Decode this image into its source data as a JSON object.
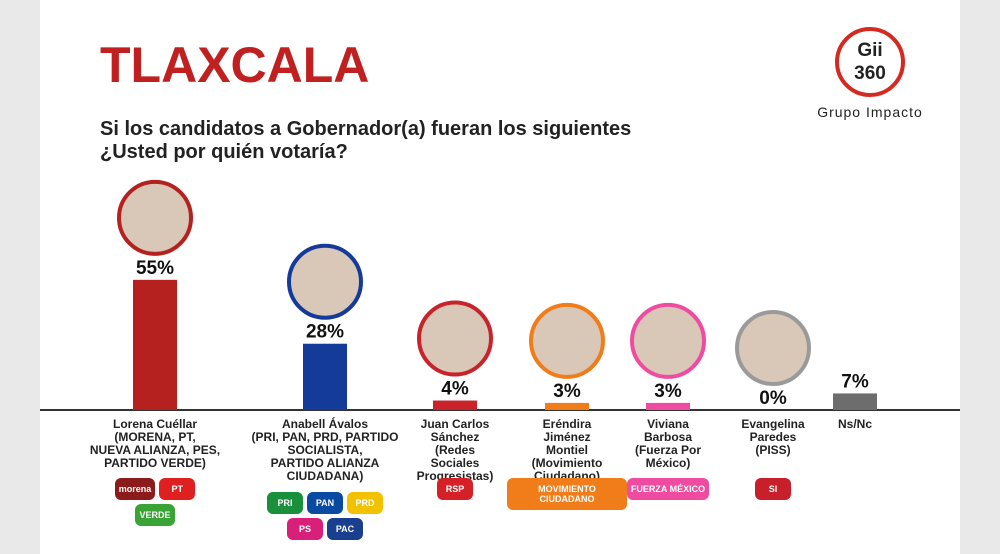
{
  "chart_data": {
    "type": "bar",
    "title": "TLAXCALA",
    "subtitle": "Si los candidatos a Gobernador(a) fueran los siguientes\n¿Usted por quién votaría?",
    "categories": [
      "Lorena Cuéllar\n(MORENA, PT,\nNUEVA ALIANZA, PES,\nPARTIDO VERDE)",
      "Anabell Ávalos\n(PRI, PAN, PRD, PARTIDO\nSOCIALISTA,\nPARTIDO ALIANZA\nCIUDADANA)",
      "Juan Carlos\nSánchez\n(Redes\nSociales\nProgresistas)",
      "Eréndira\nJiménez\nMontiel\n(Movimiento\nCiudadano)",
      "Viviana\nBarbosa\n(Fuerza Por\nMéxico)",
      "Evangelina\nParedes\n(PISS)",
      "Ns/Nc"
    ],
    "values": [
      55,
      28,
      4,
      3,
      3,
      0,
      7
    ],
    "value_labels": [
      "55%",
      "28%",
      "4%",
      "3%",
      "3%",
      "0%",
      "7%"
    ],
    "colors": [
      "#b5211f",
      "#143a9a",
      "#c8232a",
      "#f07c1a",
      "#ee4ba1",
      "#9a9a9a",
      "#6d6d6d"
    ],
    "ylim": [
      0,
      60
    ]
  },
  "brand": {
    "logo_top": "Gii",
    "logo_bottom": "360",
    "name": "Grupo Impacto"
  },
  "party_logos": [
    [
      {
        "text": "morena",
        "color": "#8c1c1c"
      },
      {
        "text": "PT",
        "color": "#e02020"
      },
      {
        "text": "VERDE",
        "color": "#3aa335"
      }
    ],
    [
      {
        "text": "PRI",
        "color": "#1a8f3c"
      },
      {
        "text": "PAN",
        "color": "#0b4aa2"
      },
      {
        "text": "PRD",
        "color": "#f2c200"
      },
      {
        "text": "PS",
        "color": "#d8207a"
      },
      {
        "text": "PAC",
        "color": "#1b3f8f"
      }
    ],
    [
      {
        "text": "RSP",
        "color": "#d62027"
      }
    ],
    [
      {
        "text": "MOVIMIENTO CIUDADANO",
        "color": "#f07c1a"
      }
    ],
    [
      {
        "text": "FUERZA MÉXICO",
        "color": "#ee4ba1"
      }
    ],
    [
      {
        "text": "SI",
        "color": "#c8202a"
      }
    ]
  ]
}
